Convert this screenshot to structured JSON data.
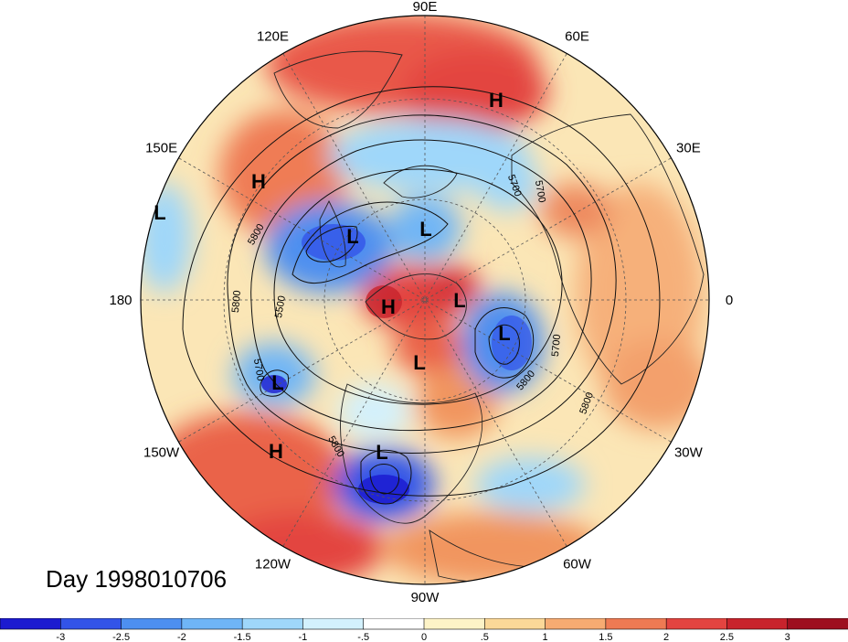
{
  "title": "Day 1998010706",
  "longitude_labels": [
    {
      "text": "90E",
      "deg": 90
    },
    {
      "text": "60E",
      "deg": 60
    },
    {
      "text": "30E",
      "deg": 30
    },
    {
      "text": "0",
      "deg": 0
    },
    {
      "text": "30W",
      "deg": -30
    },
    {
      "text": "60W",
      "deg": -60
    },
    {
      "text": "90W",
      "deg": -90
    },
    {
      "text": "120W",
      "deg": -120
    },
    {
      "text": "150W",
      "deg": -150
    },
    {
      "text": "180",
      "deg": 180
    },
    {
      "text": "150E",
      "deg": 150
    },
    {
      "text": "120E",
      "deg": 120
    }
  ],
  "pressure_centers": [
    {
      "type": "H",
      "near": "Eurasia north"
    },
    {
      "type": "H",
      "near": "East Siberia"
    },
    {
      "type": "L",
      "near": "Bering Sea"
    },
    {
      "type": "L",
      "near": "Siberia"
    },
    {
      "type": "L",
      "near": "Kara Sea"
    },
    {
      "type": "H",
      "near": "Arctic"
    },
    {
      "type": "L",
      "near": "Greenland"
    },
    {
      "type": "L",
      "near": "North Atlantic"
    },
    {
      "type": "L",
      "near": "Hudson Bay"
    },
    {
      "type": "H",
      "near": "North Pacific"
    },
    {
      "type": "L",
      "near": "Pacific southwest"
    },
    {
      "type": "L",
      "near": "Mexico"
    }
  ],
  "contour_labels": [
    "5800",
    "5700",
    "5800",
    "5500",
    "5700",
    "5800",
    "5700",
    "5800",
    "5800",
    "5700"
  ],
  "colorbar": {
    "ticks": [
      "-3",
      "-2.5",
      "-2",
      "-1.5",
      "-1",
      "-.5",
      "0",
      ".5",
      "1",
      "1.5",
      "2",
      "2.5",
      "3"
    ],
    "colors": [
      "#1c1bd0",
      "#3354e8",
      "#4d8ff0",
      "#6fb5f6",
      "#9fd7fa",
      "#d3f1fd",
      "#ffffff",
      "#fdf3c7",
      "#fbd898",
      "#f6ab72",
      "#ee7a53",
      "#e34440",
      "#c8232c",
      "#9e0f1f"
    ]
  }
}
